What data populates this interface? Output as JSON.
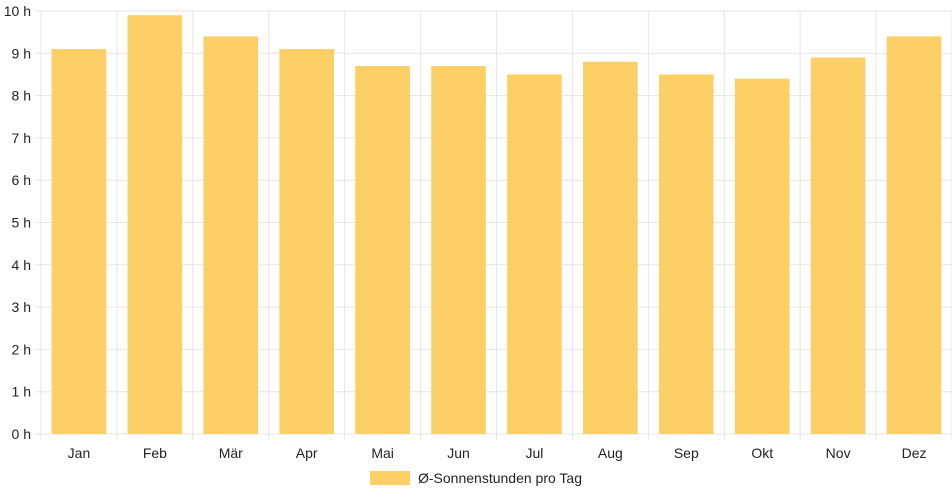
{
  "chart_data": {
    "type": "bar",
    "categories": [
      "Jan",
      "Feb",
      "Mär",
      "Apr",
      "Mai",
      "Jun",
      "Jul",
      "Aug",
      "Sep",
      "Okt",
      "Nov",
      "Dez"
    ],
    "series": [
      {
        "name": "Ø-Sonnenstunden pro Tag",
        "values": [
          9.1,
          9.9,
          9.4,
          9.1,
          8.7,
          8.7,
          8.5,
          8.8,
          8.5,
          8.4,
          8.9,
          9.4
        ]
      }
    ],
    "ylim": [
      0,
      10
    ],
    "yticks": [
      0,
      1,
      2,
      3,
      4,
      5,
      6,
      7,
      8,
      9,
      10
    ],
    "tick_suffix": " h",
    "grid": true,
    "legend_position": "bottom"
  },
  "colors": {
    "bar": "#fdd067",
    "grid": "#e6e6e6",
    "axis": "#cccccc"
  }
}
